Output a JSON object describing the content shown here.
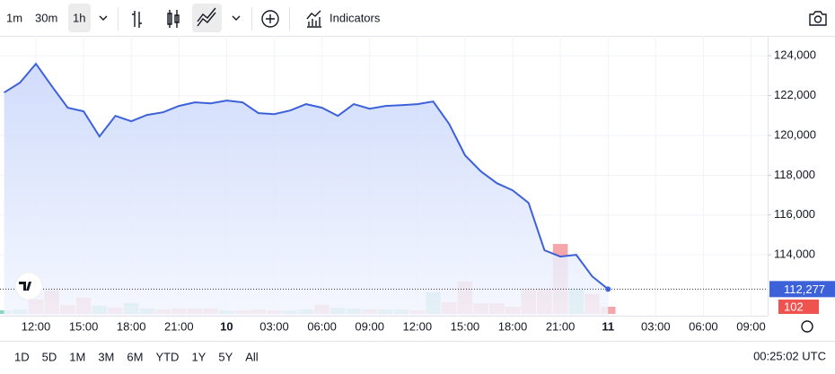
{
  "toolbar": {
    "intervals": [
      "1m",
      "30m",
      "1h"
    ],
    "indicators": "Indicators"
  },
  "chart_data": {
    "type": "area",
    "categories": [
      null,
      null,
      "12:00",
      null,
      null,
      "15:00",
      null,
      null,
      "18:00",
      null,
      null,
      "21:00",
      null,
      null,
      "10",
      null,
      null,
      "03:00",
      null,
      null,
      "06:00",
      null,
      null,
      "09:00",
      null,
      null,
      "12:00",
      null,
      null,
      "15:00",
      null,
      null,
      "18:00",
      null,
      null,
      "21:00",
      null,
      null,
      "11",
      null,
      null,
      "03:00",
      null,
      null,
      "06:00",
      null,
      null,
      "09:00",
      null
    ],
    "values": [
      122150,
      122650,
      123600,
      122470,
      121390,
      121210,
      119950,
      120980,
      120710,
      121030,
      121160,
      121480,
      121660,
      121610,
      121750,
      121660,
      121120,
      121070,
      121250,
      121570,
      121390,
      120980,
      121570,
      121340,
      121480,
      121520,
      121570,
      121700,
      120580,
      119000,
      118190,
      117600,
      117240,
      116610,
      114230,
      113910,
      114000,
      112920,
      112277,
      null,
      null,
      null,
      null,
      null,
      null,
      null,
      null,
      null,
      null
    ],
    "color": "#3d61d9",
    "last_value_label": "112,277",
    "volume": [
      51,
      64,
      204,
      332,
      128,
      230,
      115,
      89,
      153,
      77,
      64,
      77,
      77,
      77,
      51,
      51,
      64,
      51,
      51,
      64,
      128,
      89,
      77,
      64,
      64,
      64,
      51,
      306,
      166,
      459,
      153,
      153,
      102,
      344,
      357,
      995,
      357,
      281,
      102,
      null,
      null,
      null,
      null,
      null,
      null,
      null,
      null,
      null,
      null
    ],
    "volume_colors": [
      "#8fd3c9",
      "#8fd3c9",
      "#f4a6ab",
      "#f4a6ab",
      "#f4a6ab",
      "#f4a6ab",
      "#8fd3c9",
      "#f4a6ab",
      "#8fd3c9",
      "#8fd3c9",
      "#f4a6ab",
      "#f4a6ab",
      "#f4a6ab",
      "#f4a6ab",
      "#8fd3c9",
      "#f4a6ab",
      "#f4a6ab",
      "#f4a6ab",
      "#8fd3c9",
      "#8fd3c9",
      "#f4a6ab",
      "#8fd3c9",
      "#8fd3c9",
      "#f4a6ab",
      "#8fd3c9",
      "#8fd3c9",
      "#f4a6ab",
      "#8fd3c9",
      "#f4a6ab",
      "#f4a6ab",
      "#f4a6ab",
      "#f4a6ab",
      "#f4a6ab",
      "#f4a6ab",
      "#f4a6ab",
      "#f4a6ab",
      "#8fd3c9",
      "#f4a6ab",
      "#f4a6ab",
      null,
      null,
      null,
      null,
      null,
      null,
      null,
      null,
      null,
      null
    ],
    "volume_lim": [
      0,
      1275
    ],
    "ylim": [
      110940,
      125000
    ],
    "yticks": [
      {
        "value": 114000,
        "label": "114,000"
      },
      {
        "value": 116000,
        "label": "116,000"
      },
      {
        "value": 118000,
        "label": "118,000"
      },
      {
        "value": 120000,
        "label": "120,000"
      },
      {
        "value": 122000,
        "label": "122,000"
      },
      {
        "value": 124000,
        "label": "124,000"
      }
    ],
    "grid": true
  },
  "ranges": [
    "1D",
    "5D",
    "1M",
    "3M",
    "6M",
    "YTD",
    "1Y",
    "5Y",
    "All"
  ],
  "clock": "00:25:02 UTC"
}
